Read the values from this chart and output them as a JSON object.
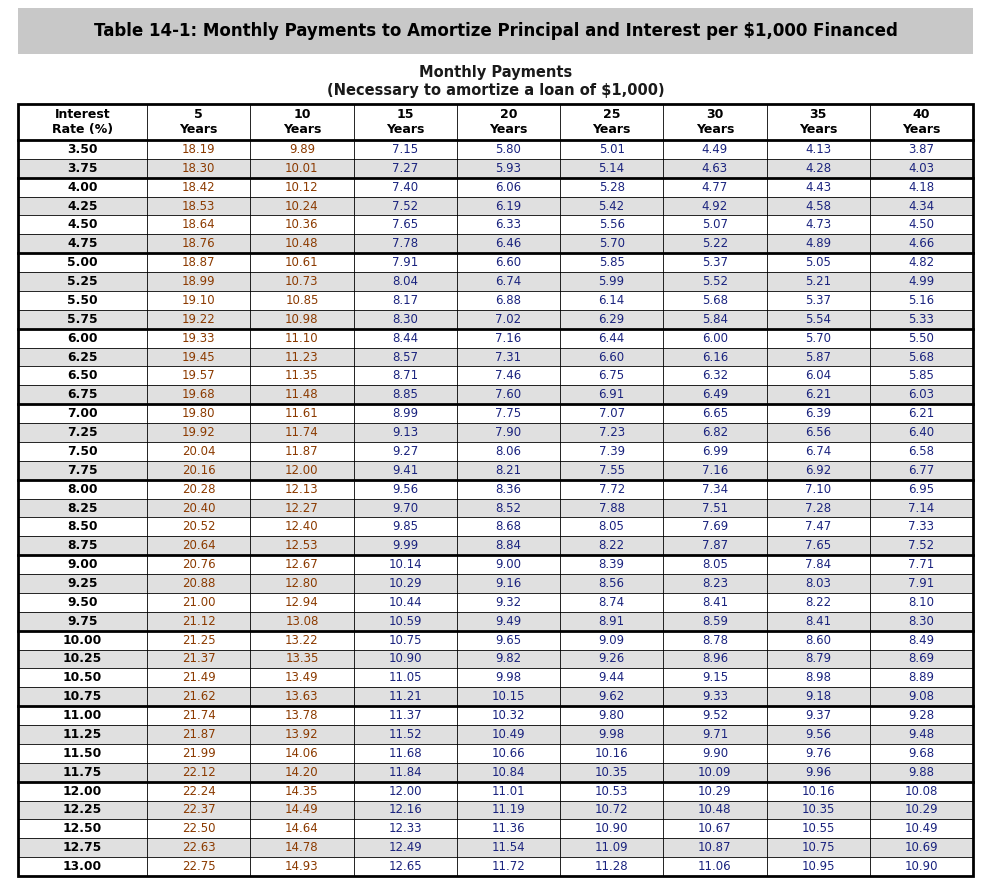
{
  "title": "Table 14-1: Monthly Payments to Amortize Principal and Interest per $1,000 Financed",
  "subtitle1": "Monthly Payments",
  "subtitle2": "(Necessary to amortize a loan of $1,000)",
  "col_headers": [
    "Interest\nRate (%)",
    "5\nYears",
    "10\nYears",
    "15\nYears",
    "20\nYears",
    "25\nYears",
    "30\nYears",
    "35\nYears",
    "40\nYears"
  ],
  "interest_rates": [
    "3.50",
    "3.75",
    "4.00",
    "4.25",
    "4.50",
    "4.75",
    "5.00",
    "5.25",
    "5.50",
    "5.75",
    "6.00",
    "6.25",
    "6.50",
    "6.75",
    "7.00",
    "7.25",
    "7.50",
    "7.75",
    "8.00",
    "8.25",
    "8.50",
    "8.75",
    "9.00",
    "9.25",
    "9.50",
    "9.75",
    "10.00",
    "10.25",
    "10.50",
    "10.75",
    "11.00",
    "11.25",
    "11.50",
    "11.75",
    "12.00",
    "12.25",
    "12.50",
    "12.75",
    "13.00"
  ],
  "data": [
    [
      "18.19",
      "9.89",
      "7.15",
      "5.80",
      "5.01",
      "4.49",
      "4.13",
      "3.87"
    ],
    [
      "18.30",
      "10.01",
      "7.27",
      "5.93",
      "5.14",
      "4.63",
      "4.28",
      "4.03"
    ],
    [
      "18.42",
      "10.12",
      "7.40",
      "6.06",
      "5.28",
      "4.77",
      "4.43",
      "4.18"
    ],
    [
      "18.53",
      "10.24",
      "7.52",
      "6.19",
      "5.42",
      "4.92",
      "4.58",
      "4.34"
    ],
    [
      "18.64",
      "10.36",
      "7.65",
      "6.33",
      "5.56",
      "5.07",
      "4.73",
      "4.50"
    ],
    [
      "18.76",
      "10.48",
      "7.78",
      "6.46",
      "5.70",
      "5.22",
      "4.89",
      "4.66"
    ],
    [
      "18.87",
      "10.61",
      "7.91",
      "6.60",
      "5.85",
      "5.37",
      "5.05",
      "4.82"
    ],
    [
      "18.99",
      "10.73",
      "8.04",
      "6.74",
      "5.99",
      "5.52",
      "5.21",
      "4.99"
    ],
    [
      "19.10",
      "10.85",
      "8.17",
      "6.88",
      "6.14",
      "5.68",
      "5.37",
      "5.16"
    ],
    [
      "19.22",
      "10.98",
      "8.30",
      "7.02",
      "6.29",
      "5.84",
      "5.54",
      "5.33"
    ],
    [
      "19.33",
      "11.10",
      "8.44",
      "7.16",
      "6.44",
      "6.00",
      "5.70",
      "5.50"
    ],
    [
      "19.45",
      "11.23",
      "8.57",
      "7.31",
      "6.60",
      "6.16",
      "5.87",
      "5.68"
    ],
    [
      "19.57",
      "11.35",
      "8.71",
      "7.46",
      "6.75",
      "6.32",
      "6.04",
      "5.85"
    ],
    [
      "19.68",
      "11.48",
      "8.85",
      "7.60",
      "6.91",
      "6.49",
      "6.21",
      "6.03"
    ],
    [
      "19.80",
      "11.61",
      "8.99",
      "7.75",
      "7.07",
      "6.65",
      "6.39",
      "6.21"
    ],
    [
      "19.92",
      "11.74",
      "9.13",
      "7.90",
      "7.23",
      "6.82",
      "6.56",
      "6.40"
    ],
    [
      "20.04",
      "11.87",
      "9.27",
      "8.06",
      "7.39",
      "6.99",
      "6.74",
      "6.58"
    ],
    [
      "20.16",
      "12.00",
      "9.41",
      "8.21",
      "7.55",
      "7.16",
      "6.92",
      "6.77"
    ],
    [
      "20.28",
      "12.13",
      "9.56",
      "8.36",
      "7.72",
      "7.34",
      "7.10",
      "6.95"
    ],
    [
      "20.40",
      "12.27",
      "9.70",
      "8.52",
      "7.88",
      "7.51",
      "7.28",
      "7.14"
    ],
    [
      "20.52",
      "12.40",
      "9.85",
      "8.68",
      "8.05",
      "7.69",
      "7.47",
      "7.33"
    ],
    [
      "20.64",
      "12.53",
      "9.99",
      "8.84",
      "8.22",
      "7.87",
      "7.65",
      "7.52"
    ],
    [
      "20.76",
      "12.67",
      "10.14",
      "9.00",
      "8.39",
      "8.05",
      "7.84",
      "7.71"
    ],
    [
      "20.88",
      "12.80",
      "10.29",
      "9.16",
      "8.56",
      "8.23",
      "8.03",
      "7.91"
    ],
    [
      "21.00",
      "12.94",
      "10.44",
      "9.32",
      "8.74",
      "8.41",
      "8.22",
      "8.10"
    ],
    [
      "21.12",
      "13.08",
      "10.59",
      "9.49",
      "8.91",
      "8.59",
      "8.41",
      "8.30"
    ],
    [
      "21.25",
      "13.22",
      "10.75",
      "9.65",
      "9.09",
      "8.78",
      "8.60",
      "8.49"
    ],
    [
      "21.37",
      "13.35",
      "10.90",
      "9.82",
      "9.26",
      "8.96",
      "8.79",
      "8.69"
    ],
    [
      "21.49",
      "13.49",
      "11.05",
      "9.98",
      "9.44",
      "9.15",
      "8.98",
      "8.89"
    ],
    [
      "21.62",
      "13.63",
      "11.21",
      "10.15",
      "9.62",
      "9.33",
      "9.18",
      "9.08"
    ],
    [
      "21.74",
      "13.78",
      "11.37",
      "10.32",
      "9.80",
      "9.52",
      "9.37",
      "9.28"
    ],
    [
      "21.87",
      "13.92",
      "11.52",
      "10.49",
      "9.98",
      "9.71",
      "9.56",
      "9.48"
    ],
    [
      "21.99",
      "14.06",
      "11.68",
      "10.66",
      "10.16",
      "9.90",
      "9.76",
      "9.68"
    ],
    [
      "22.12",
      "14.20",
      "11.84",
      "10.84",
      "10.35",
      "10.09",
      "9.96",
      "9.88"
    ],
    [
      "22.24",
      "14.35",
      "12.00",
      "11.01",
      "10.53",
      "10.29",
      "10.16",
      "10.08"
    ],
    [
      "22.37",
      "14.49",
      "12.16",
      "11.19",
      "10.72",
      "10.48",
      "10.35",
      "10.29"
    ],
    [
      "22.50",
      "14.64",
      "12.33",
      "11.36",
      "10.90",
      "10.67",
      "10.55",
      "10.49"
    ],
    [
      "22.63",
      "14.78",
      "12.49",
      "11.54",
      "11.09",
      "10.87",
      "10.75",
      "10.69"
    ],
    [
      "22.75",
      "14.93",
      "12.65",
      "11.72",
      "11.28",
      "11.06",
      "10.95",
      "10.90"
    ]
  ],
  "group_starts": [
    0,
    2,
    6,
    10,
    14,
    18,
    22,
    26,
    30,
    34
  ],
  "title_bg": "#c8c8c8",
  "title_text_color": "#000000",
  "subtitle_color": "#1a1a1a",
  "header_bg": "#ffffff",
  "row_bg_white": "#ffffff",
  "row_bg_gray": "#e0e0e0",
  "rate_col_color": "#000000",
  "col1_color": "#8b3a00",
  "col2_color": "#8b3a00",
  "col3_color": "#1a237e",
  "col4_color": "#1a237e",
  "col5_color": "#1a237e",
  "col6_color": "#1a237e",
  "col7_color": "#1a237e",
  "col8_color": "#1a237e"
}
